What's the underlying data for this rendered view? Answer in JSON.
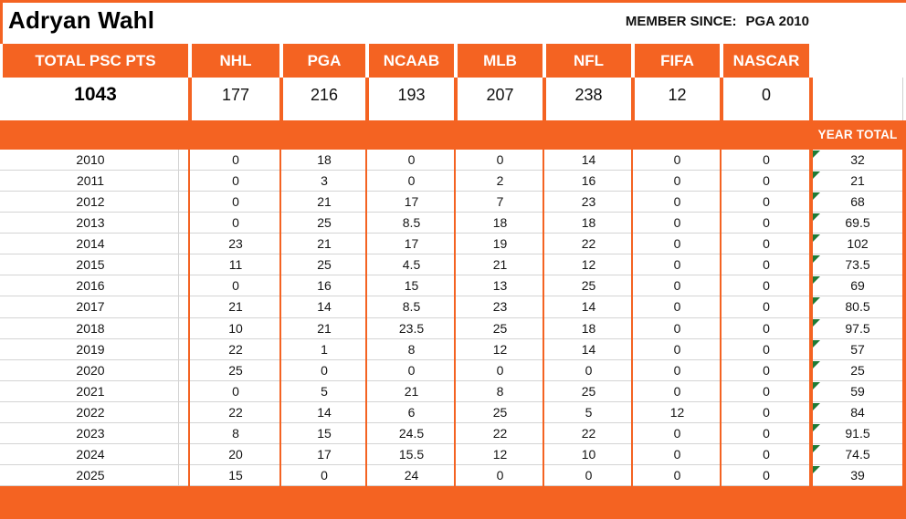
{
  "title": "Adryan Wahl",
  "member_since": {
    "label": "MEMBER SINCE:",
    "value": "PGA 2010"
  },
  "summary": {
    "total_label": "TOTAL PSC PTS",
    "total_value": "1043",
    "columns": [
      "NHL",
      "PGA",
      "NCAAB",
      "MLB",
      "NFL",
      "FIFA",
      "NASCAR"
    ],
    "totals": [
      "177",
      "216",
      "193",
      "207",
      "238",
      "12",
      "0"
    ]
  },
  "year_total_label": "YEAR TOTAL",
  "colors": {
    "orange": "#F46322",
    "grid_gray": "#D4D4D4",
    "indicator_green": "#1F7B36"
  },
  "rows": [
    {
      "year": "2010",
      "values": [
        "0",
        "18",
        "0",
        "0",
        "14",
        "0",
        "0"
      ],
      "total": "32"
    },
    {
      "year": "2011",
      "values": [
        "0",
        "3",
        "0",
        "2",
        "16",
        "0",
        "0"
      ],
      "total": "21"
    },
    {
      "year": "2012",
      "values": [
        "0",
        "21",
        "17",
        "7",
        "23",
        "0",
        "0"
      ],
      "total": "68"
    },
    {
      "year": "2013",
      "values": [
        "0",
        "25",
        "8.5",
        "18",
        "18",
        "0",
        "0"
      ],
      "total": "69.5"
    },
    {
      "year": "2014",
      "values": [
        "23",
        "21",
        "17",
        "19",
        "22",
        "0",
        "0"
      ],
      "total": "102"
    },
    {
      "year": "2015",
      "values": [
        "11",
        "25",
        "4.5",
        "21",
        "12",
        "0",
        "0"
      ],
      "total": "73.5"
    },
    {
      "year": "2016",
      "values": [
        "0",
        "16",
        "15",
        "13",
        "25",
        "0",
        "0"
      ],
      "total": "69"
    },
    {
      "year": "2017",
      "values": [
        "21",
        "14",
        "8.5",
        "23",
        "14",
        "0",
        "0"
      ],
      "total": "80.5"
    },
    {
      "year": "2018",
      "values": [
        "10",
        "21",
        "23.5",
        "25",
        "18",
        "0",
        "0"
      ],
      "total": "97.5"
    },
    {
      "year": "2019",
      "values": [
        "22",
        "1",
        "8",
        "12",
        "14",
        "0",
        "0"
      ],
      "total": "57"
    },
    {
      "year": "2020",
      "values": [
        "25",
        "0",
        "0",
        "0",
        "0",
        "0",
        "0"
      ],
      "total": "25"
    },
    {
      "year": "2021",
      "values": [
        "0",
        "5",
        "21",
        "8",
        "25",
        "0",
        "0"
      ],
      "total": "59"
    },
    {
      "year": "2022",
      "values": [
        "22",
        "14",
        "6",
        "25",
        "5",
        "12",
        "0"
      ],
      "total": "84"
    },
    {
      "year": "2023",
      "values": [
        "8",
        "15",
        "24.5",
        "22",
        "22",
        "0",
        "0"
      ],
      "total": "91.5"
    },
    {
      "year": "2024",
      "values": [
        "20",
        "17",
        "15.5",
        "12",
        "10",
        "0",
        "0"
      ],
      "total": "74.5"
    },
    {
      "year": "2025",
      "values": [
        "15",
        "0",
        "24",
        "0",
        "0",
        "0",
        "0"
      ],
      "total": "39"
    }
  ]
}
